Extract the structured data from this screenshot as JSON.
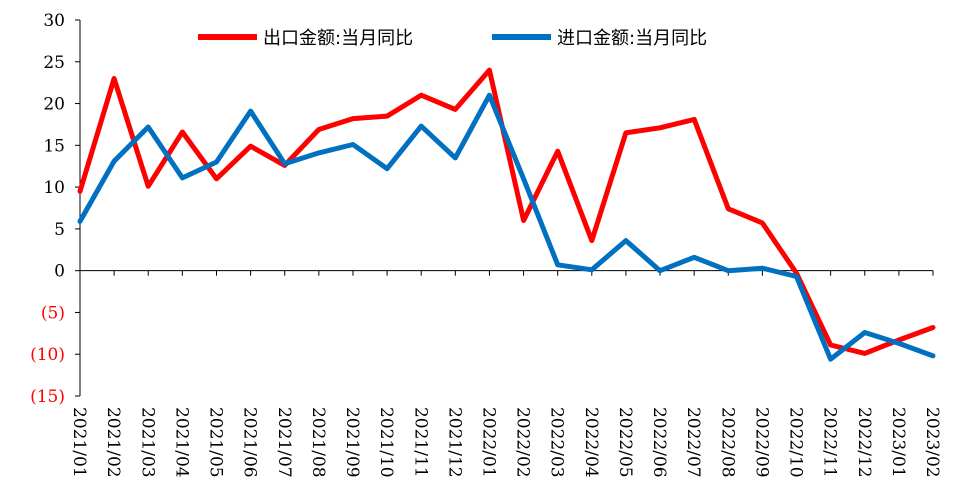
{
  "chart_data": {
    "type": "line",
    "categories": [
      "2021/01",
      "2021/02",
      "2021/03",
      "2021/04",
      "2021/05",
      "2021/06",
      "2021/07",
      "2021/08",
      "2021/09",
      "2021/10",
      "2021/11",
      "2021/12",
      "2022/01",
      "2022/02",
      "2022/03",
      "2022/04",
      "2022/05",
      "2022/06",
      "2022/07",
      "2022/08",
      "2022/09",
      "2022/10",
      "2022/11",
      "2022/12",
      "2023/01",
      "2023/02"
    ],
    "series": [
      {
        "name": "出口金额:当月同比",
        "color": "#ff0000",
        "values": [
          9.5,
          23,
          10.1,
          16.6,
          11.0,
          14.9,
          12.6,
          16.9,
          18.2,
          18.5,
          21.0,
          19.3,
          24.0,
          6.0,
          14.3,
          3.6,
          16.5,
          17.1,
          18.1,
          7.4,
          5.7,
          -0.3,
          -8.9,
          -9.9,
          -8.3,
          -6.8
        ]
      },
      {
        "name": "进口金额:当月同比",
        "color": "#0070c0",
        "values": [
          5.9,
          13.1,
          17.2,
          11.1,
          13.0,
          19.1,
          12.8,
          14.1,
          15.1,
          12.2,
          17.3,
          13.5,
          21.0,
          11.0,
          0.7,
          0.1,
          3.6,
          0.0,
          1.6,
          0.0,
          0.3,
          -0.7,
          -10.6,
          -7.4,
          -8.7,
          -10.2
        ]
      }
    ],
    "y_ticks": [
      30,
      25,
      20,
      15,
      10,
      5,
      0,
      -5,
      -10,
      -15
    ],
    "y_tick_labels": [
      "30",
      "25",
      "20",
      "15",
      "10",
      "5",
      "0",
      "(5)",
      "(10)",
      "(15)"
    ],
    "ylim": [
      -15,
      30
    ],
    "negative_tick_color": "#ff0000",
    "grid": false,
    "legend_position": "top"
  }
}
